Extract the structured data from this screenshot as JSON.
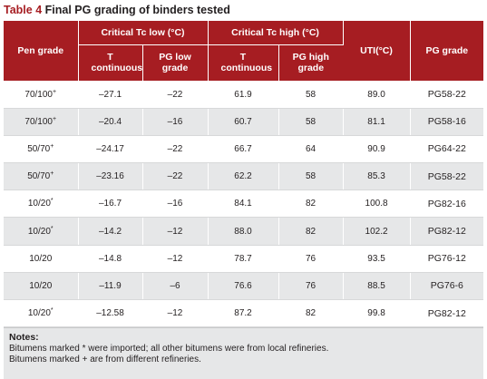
{
  "caption": {
    "label": "Table 4",
    "title": "Final PG grading of binders tested"
  },
  "header": {
    "pen_grade": "Pen grade",
    "tc_low": "Critical Tc low (°C)",
    "tc_high": "Critical Tc high (°C)",
    "uti": "UTI(°C)",
    "pg_grade": "PG grade",
    "t_continuous_low": "T continuous",
    "pg_low_grade": "PG low grade",
    "t_continuous_high": "T continuous",
    "pg_high_grade": "PG high grade"
  },
  "rows": [
    {
      "pen": "70/100",
      "mark": "+",
      "tlow": "–27.1",
      "pglow": "–22",
      "thigh": "61.9",
      "pghigh": "58",
      "uti": "89.0",
      "pg": "PG58-22"
    },
    {
      "pen": "70/100",
      "mark": "+",
      "tlow": "–20.4",
      "pglow": "–16",
      "thigh": "60.7",
      "pghigh": "58",
      "uti": "81.1",
      "pg": "PG58-16"
    },
    {
      "pen": "50/70",
      "mark": "+",
      "tlow": "–24.17",
      "pglow": "–22",
      "thigh": "66.7",
      "pghigh": "64",
      "uti": "90.9",
      "pg": "PG64-22"
    },
    {
      "pen": "50/70",
      "mark": "+",
      "tlow": "–23.16",
      "pglow": "–22",
      "thigh": "62.2",
      "pghigh": "58",
      "uti": "85.3",
      "pg": "PG58-22"
    },
    {
      "pen": "10/20",
      "mark": "*",
      "tlow": "–16.7",
      "pglow": "–16",
      "thigh": "84.1",
      "pghigh": "82",
      "uti": "100.8",
      "pg": "PG82-16"
    },
    {
      "pen": "10/20",
      "mark": "*",
      "tlow": "–14.2",
      "pglow": "–12",
      "thigh": "88.0",
      "pghigh": "82",
      "uti": "102.2",
      "pg": "PG82-12"
    },
    {
      "pen": "10/20",
      "mark": "",
      "tlow": "–14.8",
      "pglow": "–12",
      "thigh": "78.7",
      "pghigh": "76",
      "uti": "93.5",
      "pg": "PG76-12"
    },
    {
      "pen": "10/20",
      "mark": "",
      "tlow": "–11.9",
      "pglow": "–6",
      "thigh": "76.6",
      "pghigh": "76",
      "uti": "88.5",
      "pg": "PG76-6"
    },
    {
      "pen": "10/20",
      "mark": "*",
      "tlow": "–12.58",
      "pglow": "–12",
      "thigh": "87.2",
      "pghigh": "82",
      "uti": "99.8",
      "pg": "PG82-12"
    }
  ],
  "notes": {
    "title": "Notes:",
    "line1": "Bitumens marked * were imported; all other bitumens were from local refineries.",
    "line2": "Bitumens marked + are from different refineries."
  },
  "colors": {
    "header_bg": "#a61d22",
    "stripe_bg": "#e6e7e8",
    "caption_label": "#a61d22"
  }
}
